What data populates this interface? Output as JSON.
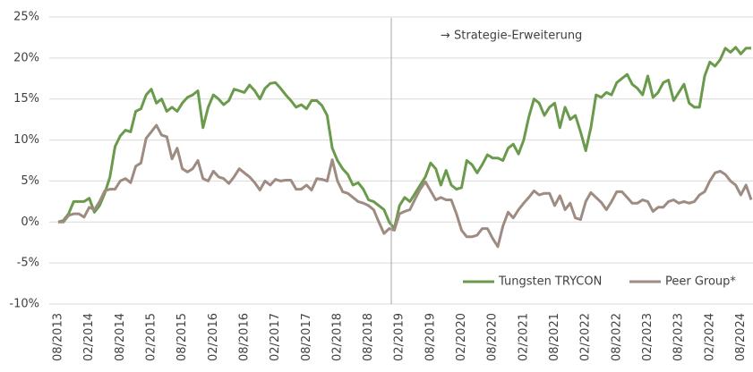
{
  "chart_data": {
    "type": "line",
    "annotation": "→ Strategie-Erweiterung",
    "categories": [
      "08/2013",
      null,
      null,
      null,
      null,
      null,
      "02/2014",
      null,
      null,
      null,
      null,
      null,
      "08/2014",
      null,
      null,
      null,
      null,
      null,
      "02/2015",
      null,
      null,
      null,
      null,
      null,
      "08/2015",
      null,
      null,
      null,
      null,
      null,
      "02/2016",
      null,
      null,
      null,
      null,
      null,
      "08/2016",
      null,
      null,
      null,
      null,
      null,
      "02/2017",
      null,
      null,
      null,
      null,
      null,
      "08/2017",
      null,
      null,
      null,
      null,
      null,
      "02/2018",
      null,
      null,
      null,
      null,
      null,
      "08/2018",
      null,
      null,
      null,
      null,
      null,
      "02/2019",
      null,
      null,
      null,
      null,
      null,
      "08/2019",
      null,
      null,
      null,
      null,
      null,
      "02/2020",
      null,
      null,
      null,
      null,
      null,
      "08/2020",
      null,
      null,
      null,
      null,
      null,
      "02/2021",
      null,
      null,
      null,
      null,
      null,
      "08/2021",
      null,
      null,
      null,
      null,
      null,
      "02/2022",
      null,
      null,
      null,
      null,
      null,
      "08/2022",
      null,
      null,
      null,
      null,
      null,
      "02/2023",
      null,
      null,
      null,
      null,
      null,
      "08/2023",
      null,
      null,
      null,
      null,
      null,
      "02/2024",
      null,
      null,
      null,
      null,
      null,
      "08/2024",
      null,
      null
    ],
    "series": [
      {
        "name": "Tungsten TRYCON",
        "color": "#6a9a4b",
        "values": [
          0,
          0.2,
          1.0,
          2.5,
          2.5,
          2.5,
          2.9,
          1.2,
          2.0,
          3.5,
          5.5,
          9.2,
          10.5,
          11.2,
          11.0,
          13.5,
          13.8,
          15.5,
          16.2,
          14.5,
          15.0,
          13.5,
          14.0,
          13.5,
          14.5,
          15.2,
          15.5,
          16.0,
          11.5,
          14.0,
          15.5,
          15.0,
          14.3,
          14.8,
          16.2,
          16.0,
          15.8,
          16.7,
          16.0,
          15.0,
          16.3,
          16.9,
          17.0,
          16.3,
          15.5,
          14.8,
          14.0,
          14.3,
          13.8,
          14.8,
          14.8,
          14.2,
          13.0,
          9.0,
          7.5,
          6.5,
          5.8,
          4.5,
          4.8,
          4.0,
          2.7,
          2.5,
          2.0,
          1.5,
          0.0,
          -0.8,
          2.0,
          3.0,
          2.5,
          3.5,
          4.5,
          5.5,
          7.2,
          6.5,
          4.5,
          6.3,
          4.5,
          4.0,
          4.2,
          7.5,
          7.0,
          6.0,
          7.0,
          8.2,
          7.8,
          7.8,
          7.5,
          9.0,
          9.5,
          8.3,
          10.0,
          12.8,
          15.0,
          14.5,
          13.0,
          14.0,
          14.5,
          11.5,
          14.0,
          12.5,
          13.0,
          11.0,
          8.7,
          11.5,
          15.5,
          15.2,
          15.8,
          15.5,
          17.0,
          17.5,
          18.0,
          16.8,
          16.3,
          15.5,
          17.8,
          15.2,
          15.8,
          17.0,
          17.3,
          14.8,
          15.8,
          16.8,
          14.5,
          14.0,
          14.0,
          17.8,
          19.5,
          19.0,
          19.8,
          21.2,
          20.7,
          21.3,
          20.5,
          21.2,
          21.2
        ]
      },
      {
        "name": "Peer Group*",
        "color": "#9e8b82",
        "values": [
          0,
          0,
          0.8,
          1.0,
          1.0,
          0.6,
          1.8,
          1.5,
          2.5,
          3.8,
          4.0,
          4.0,
          5.0,
          5.3,
          4.8,
          6.8,
          7.2,
          10.2,
          11.0,
          11.8,
          10.6,
          10.4,
          7.7,
          9.0,
          6.5,
          6.1,
          6.5,
          7.5,
          5.3,
          5.0,
          6.2,
          5.5,
          5.3,
          4.7,
          5.5,
          6.5,
          6.0,
          5.5,
          4.8,
          3.9,
          5.0,
          4.5,
          5.2,
          5.0,
          5.1,
          5.1,
          4.0,
          4.0,
          4.5,
          3.9,
          5.3,
          5.2,
          5.0,
          7.6,
          5.0,
          3.7,
          3.5,
          3.0,
          2.5,
          2.3,
          2.0,
          1.5,
          0.0,
          -1.4,
          -0.8,
          -1.0,
          1.0,
          1.3,
          1.5,
          2.8,
          4.0,
          4.9,
          3.8,
          2.7,
          3.0,
          2.7,
          2.7,
          1.0,
          -1.0,
          -1.8,
          -1.8,
          -1.6,
          -0.8,
          -0.8,
          -2.0,
          -3.0,
          -0.5,
          1.2,
          0.5,
          1.5,
          2.3,
          3.0,
          3.8,
          3.3,
          3.5,
          3.5,
          2.0,
          3.2,
          1.5,
          2.3,
          0.5,
          0.3,
          2.5,
          3.6,
          3.0,
          2.4,
          1.5,
          2.5,
          3.7,
          3.7,
          3.0,
          2.3,
          2.3,
          2.7,
          2.5,
          1.3,
          1.8,
          1.8,
          2.5,
          2.7,
          2.3,
          2.5,
          2.3,
          2.5,
          3.3,
          3.7,
          5.0,
          6.0,
          6.2,
          5.8,
          5.0,
          4.5,
          3.3,
          4.5,
          2.7
        ]
      }
    ],
    "ylim": [
      -10,
      25
    ],
    "yticks": [
      {
        "value": -10,
        "label": "-10%"
      },
      {
        "value": -5,
        "label": "-5%"
      },
      {
        "value": 0,
        "label": "0%"
      },
      {
        "value": 5,
        "label": "5%"
      },
      {
        "value": 10,
        "label": "10%"
      },
      {
        "value": 15,
        "label": "15%"
      },
      {
        "value": 20,
        "label": "20%"
      },
      {
        "value": 25,
        "label": "25%"
      }
    ],
    "grid": true,
    "legend": "bottom-right"
  }
}
